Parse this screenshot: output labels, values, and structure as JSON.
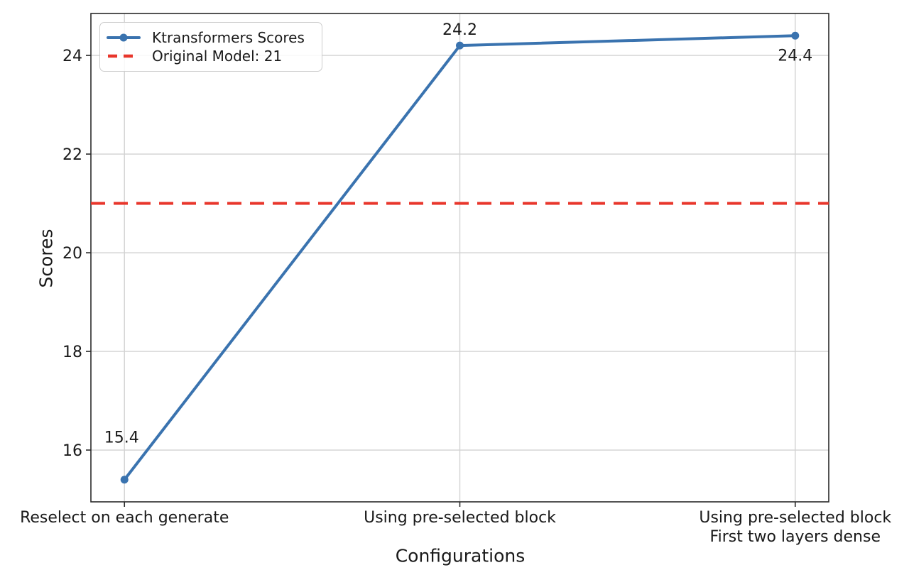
{
  "chart_data": {
    "type": "line",
    "title": "",
    "xlabel": "Configurations",
    "ylabel": "Scores",
    "categories": [
      "Reselect on each generate",
      "Using pre-selected block",
      "Using pre-selected block\nFirst two layers dense"
    ],
    "series": [
      {
        "name": "Ktransformers Scores",
        "values": [
          15.4,
          24.2,
          24.4
        ],
        "color": "#3a73af",
        "marker": "circle",
        "line_style": "solid"
      }
    ],
    "reference_line": {
      "label": "Original Model: 21",
      "value": 21,
      "color": "#e8362b",
      "line_style": "dashed"
    },
    "point_labels": [
      "15.4",
      "24.2",
      "24.4"
    ],
    "yticks": [
      16,
      18,
      20,
      22,
      24
    ],
    "ylim": [
      14.95,
      24.85
    ],
    "xlim": [
      -0.1,
      2.1
    ],
    "grid": true,
    "legend_position": "upper-left",
    "colors": {
      "grid": "#d2d2d2",
      "spine": "#2a2a2a",
      "text": "#1a1a1a",
      "background": "#ffffff"
    }
  }
}
